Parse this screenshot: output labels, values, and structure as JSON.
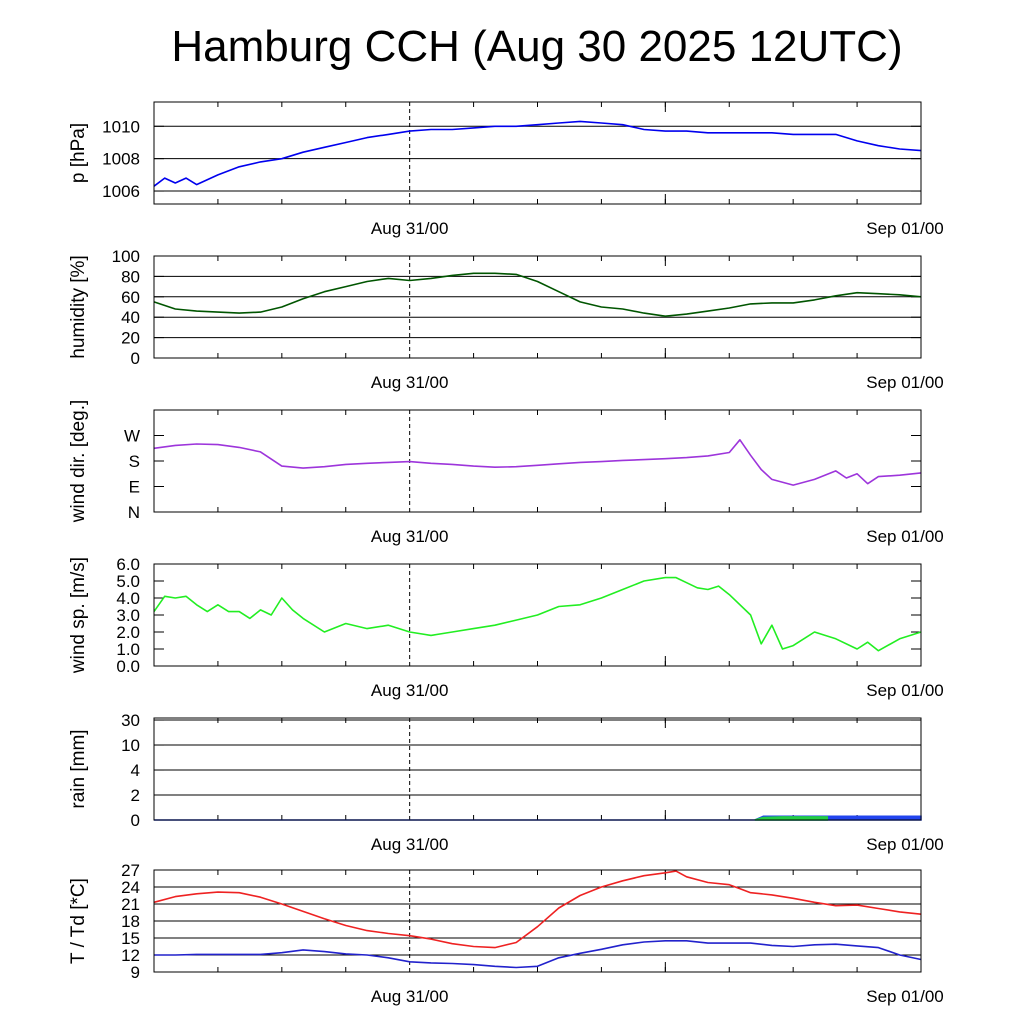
{
  "title": "Hamburg CCH (Aug 30 2025 12UTC)",
  "chart_data": [
    {
      "type": "line",
      "ylabel": "p [hPa]",
      "x_tick_labels": [
        "Aug 31/00",
        "Sep 01/00"
      ],
      "x_range_hours": [
        0,
        36
      ],
      "marker_hour": 12,
      "ylim": [
        1005.2,
        1011.5
      ],
      "ytick_values": [
        1006,
        1008,
        1010
      ],
      "ytick_labels": [
        "1006",
        "1008",
        "1010"
      ],
      "gridlines": [
        1006,
        1008,
        1010
      ],
      "series": [
        {
          "color": "#0000ee",
          "x": [
            0,
            0.5,
            1,
            1.5,
            2,
            3,
            4,
            5,
            6,
            7,
            8,
            9,
            10,
            11,
            12,
            13,
            14,
            15,
            16,
            17,
            18,
            19,
            20,
            21,
            22,
            23,
            24,
            25,
            26,
            27,
            28,
            29,
            30,
            31,
            32,
            33,
            34,
            35,
            36
          ],
          "values": [
            1006.3,
            1006.8,
            1006.5,
            1006.8,
            1006.4,
            1007.0,
            1007.5,
            1007.8,
            1008.0,
            1008.4,
            1008.7,
            1009.0,
            1009.3,
            1009.5,
            1009.7,
            1009.8,
            1009.8,
            1009.9,
            1010.0,
            1010.0,
            1010.1,
            1010.2,
            1010.3,
            1010.2,
            1010.1,
            1009.8,
            1009.7,
            1009.7,
            1009.6,
            1009.6,
            1009.6,
            1009.6,
            1009.5,
            1009.5,
            1009.5,
            1009.1,
            1008.8,
            1008.6,
            1008.5
          ]
        }
      ]
    },
    {
      "type": "line",
      "ylabel": "humidity [%]",
      "x_tick_labels": [
        "Aug 31/00",
        "Sep 01/00"
      ],
      "x_range_hours": [
        0,
        36
      ],
      "marker_hour": 12,
      "ylim": [
        0,
        100
      ],
      "ytick_values": [
        0,
        20,
        40,
        60,
        80,
        100
      ],
      "ytick_labels": [
        "0",
        "20",
        "40",
        "60",
        "80",
        "100"
      ],
      "gridlines": [
        20,
        40,
        60,
        80
      ],
      "series": [
        {
          "color": "#005500",
          "x": [
            0,
            1,
            2,
            3,
            4,
            5,
            6,
            7,
            8,
            9,
            10,
            11,
            12,
            13,
            14,
            15,
            16,
            17,
            18,
            19,
            20,
            21,
            22,
            23,
            24,
            25,
            26,
            27,
            28,
            29,
            30,
            31,
            32,
            33,
            34,
            35,
            36
          ],
          "values": [
            55,
            48,
            46,
            45,
            44,
            45,
            50,
            58,
            65,
            70,
            75,
            78,
            76,
            78,
            81,
            83,
            83,
            82,
            75,
            65,
            55,
            50,
            48,
            44,
            41,
            43,
            46,
            49,
            53,
            54,
            54,
            57,
            61,
            64,
            63,
            62,
            60
          ]
        }
      ]
    },
    {
      "type": "line",
      "ylabel": "wind dir. [deg.]",
      "x_tick_labels": [
        "Aug 31/00",
        "Sep 01/00"
      ],
      "x_range_hours": [
        0,
        36
      ],
      "marker_hour": 12,
      "ylim": [
        0,
        360
      ],
      "ytick_values": [
        0,
        90,
        180,
        270
      ],
      "ytick_labels": [
        "N",
        "E",
        "S",
        "W"
      ],
      "gridlines": [],
      "series": [
        {
          "color": "#9d35db",
          "x": [
            0,
            1,
            2,
            3,
            4,
            5,
            6,
            7,
            8,
            9,
            10,
            11,
            12,
            13,
            14,
            15,
            16,
            17,
            18,
            19,
            20,
            21,
            22,
            23,
            24,
            25,
            26,
            27,
            27.5,
            28,
            28.5,
            29,
            30,
            31,
            32,
            32.5,
            33,
            33.5,
            34,
            35,
            36
          ],
          "values": [
            225,
            235,
            240,
            238,
            228,
            212,
            162,
            155,
            160,
            168,
            172,
            175,
            178,
            172,
            168,
            162,
            158,
            160,
            165,
            170,
            175,
            178,
            182,
            185,
            188,
            192,
            198,
            210,
            255,
            200,
            150,
            115,
            95,
            115,
            145,
            120,
            135,
            100,
            125,
            130,
            138
          ]
        }
      ]
    },
    {
      "type": "line",
      "ylabel": "wind sp. [m/s]",
      "x_tick_labels": [
        "Aug 31/00",
        "Sep 01/00"
      ],
      "x_range_hours": [
        0,
        36
      ],
      "marker_hour": 12,
      "ylim": [
        0,
        6
      ],
      "ytick_values": [
        0,
        1,
        2,
        3,
        4,
        5,
        6
      ],
      "ytick_labels": [
        "0.0",
        "1.0",
        "2.0",
        "3.0",
        "4.0",
        "5.0",
        "6.0"
      ],
      "gridlines": [],
      "series": [
        {
          "color": "#22ee22",
          "x": [
            0,
            0.5,
            1,
            1.5,
            2,
            2.5,
            3,
            3.5,
            4,
            4.5,
            5,
            5.5,
            6,
            6.5,
            7,
            8,
            9,
            10,
            11,
            12,
            13,
            14,
            15,
            16,
            17,
            18,
            19,
            20,
            21,
            22,
            23,
            24,
            24.5,
            25,
            25.5,
            26,
            26.5,
            27,
            28,
            28.5,
            29,
            29.5,
            30,
            31,
            32,
            33,
            33.5,
            34,
            35,
            36
          ],
          "values": [
            3.2,
            4.1,
            4.0,
            4.1,
            3.6,
            3.2,
            3.6,
            3.2,
            3.2,
            2.8,
            3.3,
            3.0,
            4.0,
            3.3,
            2.8,
            2.0,
            2.5,
            2.2,
            2.4,
            2.0,
            1.8,
            2.0,
            2.2,
            2.4,
            2.7,
            3.0,
            3.5,
            3.6,
            4.0,
            4.5,
            5.0,
            5.2,
            5.2,
            4.9,
            4.6,
            4.5,
            4.7,
            4.2,
            3.0,
            1.3,
            2.4,
            1.0,
            1.2,
            2.0,
            1.6,
            1.0,
            1.4,
            0.9,
            1.6,
            2.0
          ]
        }
      ]
    },
    {
      "type": "area",
      "ylabel": "rain [mm]",
      "x_tick_labels": [
        "Aug 31/00",
        "Sep 01/00"
      ],
      "x_range_hours": [
        0,
        36
      ],
      "marker_hour": 12,
      "scale": "nonlinear",
      "ytick_values": [
        0,
        2,
        4,
        10,
        30
      ],
      "ytick_labels": [
        "0",
        "2",
        "4",
        "10",
        "30"
      ],
      "gridlines": [
        2,
        4,
        10,
        30
      ],
      "series": [
        {
          "color": "#2244ee",
          "x": [
            0,
            28.2,
            28.6,
            36
          ],
          "values": [
            0,
            0,
            0.3,
            0.3
          ]
        },
        {
          "color": "#22cc44",
          "x": [
            28.2,
            28.6,
            29.5,
            31.6
          ],
          "values": [
            0,
            0.2,
            0.25,
            0.25
          ]
        }
      ]
    },
    {
      "type": "line",
      "ylabel": "T / Td [*C]",
      "x_tick_labels": [
        "Aug 31/00",
        "Sep 01/00"
      ],
      "x_range_hours": [
        0,
        36
      ],
      "marker_hour": 12,
      "ylim": [
        9,
        27
      ],
      "ytick_values": [
        9,
        12,
        15,
        18,
        21,
        24,
        27
      ],
      "ytick_labels": [
        "9",
        "12",
        "15",
        "18",
        "21",
        "24",
        "27"
      ],
      "gridlines": [
        12,
        15,
        18,
        21,
        24,
        27
      ],
      "series": [
        {
          "color": "#ee2222",
          "x": [
            0,
            1,
            2,
            3,
            4,
            5,
            6,
            7,
            8,
            9,
            10,
            11,
            12,
            13,
            14,
            15,
            16,
            17,
            18,
            19,
            20,
            21,
            22,
            23,
            24,
            24.5,
            25,
            26,
            27,
            28,
            29,
            30,
            31,
            32,
            33,
            34,
            35,
            36
          ],
          "values": [
            21.3,
            22.3,
            22.8,
            23.1,
            23.0,
            22.2,
            21.0,
            19.7,
            18.4,
            17.2,
            16.3,
            15.8,
            15.4,
            14.8,
            14.0,
            13.5,
            13.3,
            14.2,
            17.0,
            20.3,
            22.5,
            24.0,
            25.1,
            26.0,
            26.5,
            26.8,
            25.8,
            24.8,
            24.4,
            23.0,
            22.6,
            22.0,
            21.3,
            20.7,
            20.8,
            20.2,
            19.6,
            19.2
          ]
        },
        {
          "color": "#2222cc",
          "x": [
            0,
            1,
            2,
            3,
            4,
            5,
            6,
            7,
            8,
            9,
            10,
            11,
            12,
            13,
            14,
            15,
            16,
            17,
            18,
            19,
            20,
            21,
            22,
            23,
            24,
            25,
            26,
            27,
            28,
            29,
            30,
            31,
            32,
            33,
            34,
            35,
            36
          ],
          "values": [
            12.0,
            12.0,
            12.1,
            12.1,
            12.1,
            12.1,
            12.4,
            12.9,
            12.6,
            12.2,
            12.0,
            11.5,
            10.8,
            10.6,
            10.5,
            10.3,
            10.0,
            9.8,
            10.0,
            11.5,
            12.3,
            13.0,
            13.8,
            14.3,
            14.5,
            14.5,
            14.1,
            14.1,
            14.1,
            13.7,
            13.5,
            13.8,
            13.9,
            13.6,
            13.3,
            12.0,
            11.2
          ]
        }
      ]
    }
  ]
}
